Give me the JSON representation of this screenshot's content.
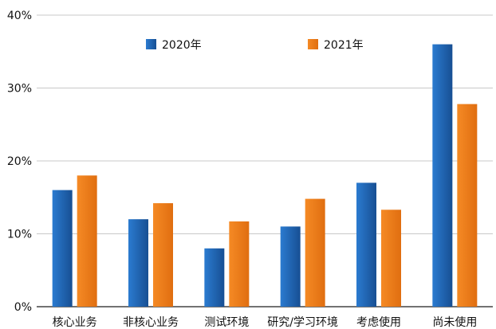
{
  "chart_data": {
    "type": "bar",
    "title": "",
    "xlabel": "",
    "ylabel": "",
    "categories": [
      "核心业务",
      "非核心业务",
      "测试环境",
      "研究/学习环境",
      "考虑使用",
      "尚未使用"
    ],
    "series": [
      {
        "name": "2020年",
        "values": [
          16,
          12,
          8,
          11,
          17,
          36
        ],
        "color": "#1f5fa8"
      },
      {
        "name": "2021年",
        "values": [
          18,
          14.2,
          11.7,
          14.8,
          13.3,
          27.8
        ],
        "color": "#f07d1a"
      }
    ],
    "ylim": [
      0,
      40
    ],
    "yticks": [
      "0%",
      "10%",
      "20%",
      "30%",
      "40%"
    ],
    "ytick_values": [
      0,
      10,
      20,
      30,
      40
    ],
    "grid": true,
    "legend_position": "top"
  }
}
